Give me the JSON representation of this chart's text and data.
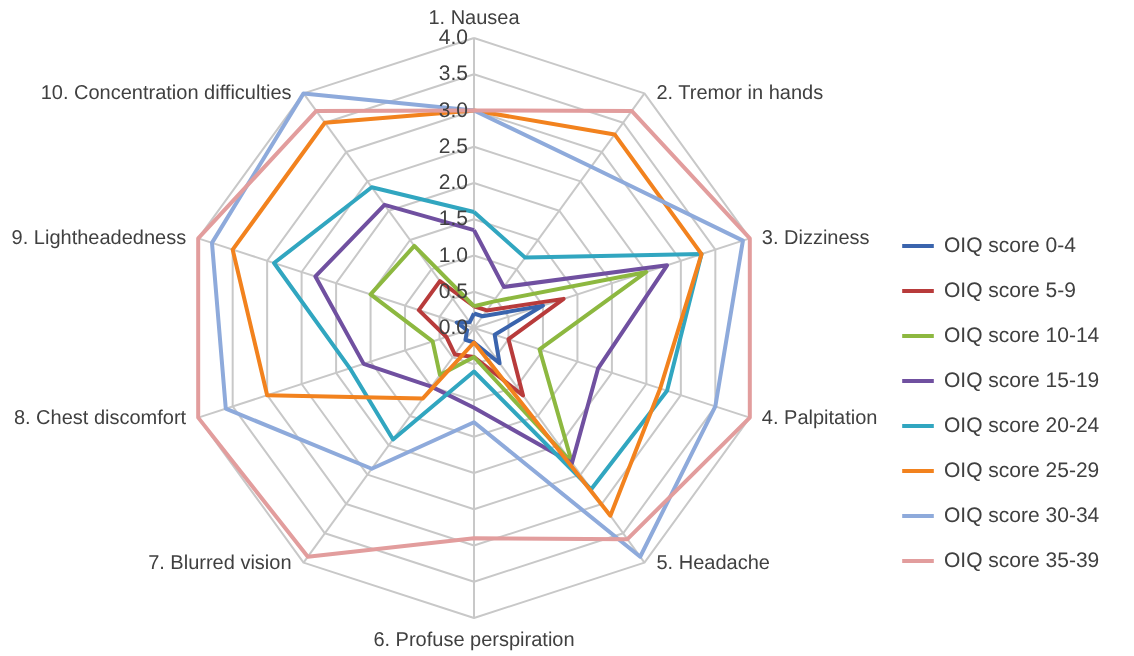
{
  "chart_data": {
    "type": "radar",
    "categories": [
      "1. Nausea",
      "2. Tremor in hands",
      "3. Dizziness",
      "4. Palpitation",
      "5. Headache",
      "6. Profuse perspiration",
      "7. Blurred vision",
      "8. Chest discomfort",
      "9. Lightheadedness",
      "10. Concentration difficulties"
    ],
    "ylim": [
      0,
      4
    ],
    "yticks": [
      {
        "value": 0,
        "label": "0.0"
      },
      {
        "value": 0.5,
        "label": "0.5"
      },
      {
        "value": 1,
        "label": "1.0"
      },
      {
        "value": 1.5,
        "label": "1.5"
      },
      {
        "value": 2,
        "label": "2.0"
      },
      {
        "value": 2.5,
        "label": "2.5"
      },
      {
        "value": 3,
        "label": "3.0"
      },
      {
        "value": 3.5,
        "label": "3.5"
      },
      {
        "value": 4,
        "label": "4.0"
      }
    ],
    "grid": true,
    "legend": "right",
    "marker": "none",
    "series": [
      {
        "name": "OIQ score 0-4",
        "color": "#3a64ad",
        "values": [
          0.2,
          0.2,
          1.0,
          0.3,
          0.6,
          0.2,
          0.2,
          0.1,
          0.25,
          0.1
        ]
      },
      {
        "name": "OIQ score 5-9",
        "color": "#b83b3b",
        "values": [
          0.3,
          0.3,
          1.3,
          0.5,
          1.15,
          0.4,
          0.45,
          0.4,
          0.8,
          0.8
        ]
      },
      {
        "name": "OIQ score 10-14",
        "color": "#8db840",
        "values": [
          0.3,
          0.45,
          2.5,
          0.95,
          2.3,
          0.4,
          0.8,
          0.6,
          1.5,
          1.4
        ]
      },
      {
        "name": "OIQ score 15-19",
        "color": "#7050a0",
        "values": [
          1.35,
          0.7,
          2.8,
          1.8,
          2.3,
          1.1,
          1.0,
          1.6,
          2.3,
          2.1
        ]
      },
      {
        "name": "OIQ score 20-24",
        "color": "#31a6c0",
        "values": [
          1.6,
          1.2,
          3.3,
          2.8,
          2.75,
          0.6,
          1.9,
          1.8,
          2.9,
          2.4
        ]
      },
      {
        "name": "OIQ score 25-29",
        "color": "#f2821e",
        "values": [
          3.0,
          3.3,
          3.3,
          2.7,
          3.2,
          0.2,
          1.2,
          3.0,
          3.5,
          3.5
        ]
      },
      {
        "name": "OIQ score 30-34",
        "color": "#8eaadb",
        "values": [
          3.0,
          2.75,
          3.9,
          3.5,
          3.9,
          1.3,
          2.4,
          3.6,
          3.8,
          4.0
        ]
      },
      {
        "name": "OIQ score 35-39",
        "color": "#e29d9d",
        "values": [
          3.0,
          3.7,
          4.0,
          4.0,
          3.6,
          2.9,
          3.9,
          4.0,
          4.0,
          3.7
        ]
      }
    ]
  }
}
